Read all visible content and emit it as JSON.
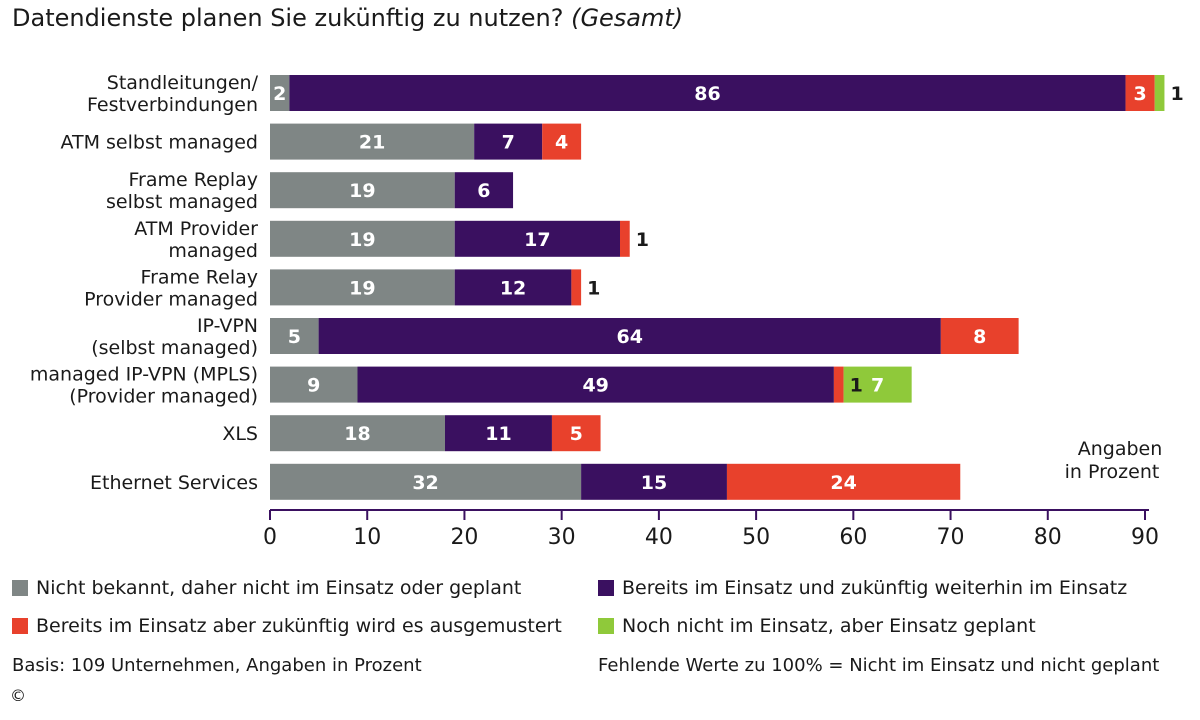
{
  "header": {
    "title_line": "Datendienste planen Sie zukünftig zu nutzen?",
    "title_suffix": "(Gesamt)"
  },
  "colors": {
    "nicht_bekannt": "#7f8685",
    "bereits_weiterhin": "#3a1060",
    "ausgemustert": "#e8412c",
    "geplant": "#8fc93a"
  },
  "legend": {
    "items": [
      {
        "label": "Nicht bekannt, daher nicht im Einsatz oder geplant",
        "color": "#7f8685"
      },
      {
        "label": "Bereits im Einsatz und zukünftig weiterhin im Einsatz",
        "color": "#3a1060"
      },
      {
        "label": "Bereits im Einsatz aber zukünftig wird es ausgemustert",
        "color": "#e8412c"
      },
      {
        "label": "Noch nicht im Einsatz, aber Einsatz geplant",
        "color": "#8fc93a"
      }
    ]
  },
  "footer": {
    "basis": "Basis: 109 Unternehmen, Angaben in Prozent",
    "fehlende": "Fehlende Werte zu 100% = Nicht im Einsatz und nicht geplant",
    "copyright": "©"
  },
  "chart_data": {
    "type": "bar",
    "orientation": "horizontal",
    "stacked": true,
    "title": "Datendienste planen Sie zukünftig zu nutzen? (Gesamt)",
    "note_line1": "Angaben",
    "note_line2": "in Prozent",
    "xlim": [
      0,
      90
    ],
    "xticks": [
      0,
      10,
      20,
      30,
      40,
      50,
      60,
      70,
      80,
      90
    ],
    "categories": [
      [
        "Standleitungen/",
        "Festverbindungen"
      ],
      [
        "ATM selbst managed"
      ],
      [
        "Frame Replay",
        "selbst managed"
      ],
      [
        "ATM Provider",
        "managed"
      ],
      [
        "Frame Relay",
        "Provider managed"
      ],
      [
        "IP-VPN",
        "(selbst managed)"
      ],
      [
        "managed IP-VPN (MPLS)",
        "(Provider managed)"
      ],
      [
        "XLS"
      ],
      [
        "Ethernet Services"
      ]
    ],
    "series": [
      {
        "name": "Nicht bekannt, daher nicht im Einsatz oder geplant",
        "color": "#7f8685",
        "values": [
          2,
          21,
          19,
          19,
          19,
          5,
          9,
          18,
          32
        ]
      },
      {
        "name": "Bereits im Einsatz und zukünftig weiterhin im Einsatz",
        "color": "#3a1060",
        "values": [
          86,
          7,
          6,
          17,
          12,
          64,
          49,
          11,
          15
        ]
      },
      {
        "name": "Bereits im Einsatz aber zukünftig wird es ausgemustert",
        "color": "#e8412c",
        "values": [
          3,
          4,
          null,
          1,
          1,
          8,
          1,
          5,
          24
        ]
      },
      {
        "name": "Noch nicht im Einsatz, aber Einsatz geplant",
        "color": "#8fc93a",
        "values": [
          1,
          null,
          null,
          null,
          null,
          null,
          7,
          null,
          null
        ]
      }
    ]
  }
}
